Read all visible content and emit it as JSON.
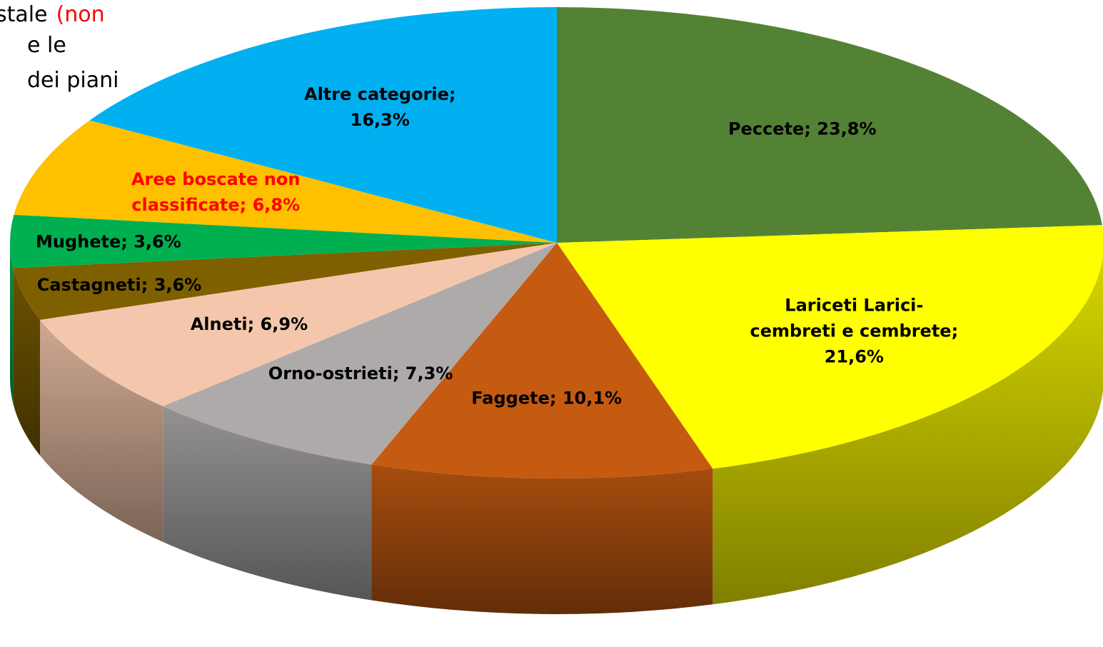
{
  "chart_data": {
    "type": "pie3d",
    "annotation_lines": [
      "stale",
      "e le",
      "dei piani"
    ],
    "annotation_highlight": "(non",
    "annotation_highlight_color": "#ff0000",
    "values": [
      23.8,
      21.6,
      10.1,
      7.3,
      6.9,
      3.6,
      3.6,
      6.8,
      16.3
    ],
    "value_labels": [
      "Peccete; 23,8%",
      "Lariceti Larici-\ncembreti e cembrete;\n21,6%",
      "Faggete; 10,1%",
      "Orno-ostrieti; 7,3%",
      "Alneti; 6,9%",
      "Castagneti; 3,6%",
      "Mughete; 3,6%",
      "Aree boscate non\nclassificate; 6,8%",
      "Altre categorie;\n16,3%"
    ],
    "colors": [
      "#548235",
      "#ffff00",
      "#c55a11",
      "#aeaaaa",
      "#f4c7ac",
      "#7f6000",
      "#00b050",
      "#ffc000",
      "#00b0f0"
    ],
    "label_colors": [
      "#000000",
      "#000000",
      "#000000",
      "#000000",
      "#000000",
      "#000000",
      "#000000",
      "#ff0000",
      "#000000"
    ]
  }
}
